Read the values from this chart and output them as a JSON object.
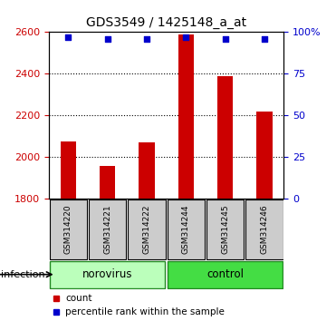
{
  "title": "GDS3549 / 1425148_a_at",
  "samples": [
    "GSM314220",
    "GSM314221",
    "GSM314222",
    "GSM314244",
    "GSM314245",
    "GSM314246"
  ],
  "counts": [
    2075,
    1960,
    2070,
    2590,
    2390,
    2220
  ],
  "percentile_ranks": [
    97,
    96,
    96,
    97,
    96,
    96
  ],
  "ylim_left": [
    1800,
    2600
  ],
  "ylim_right": [
    0,
    100
  ],
  "yticks_left": [
    1800,
    2000,
    2200,
    2400,
    2600
  ],
  "yticks_right": [
    0,
    25,
    50,
    75,
    100
  ],
  "groups": [
    {
      "label": "norovirus",
      "color": "#bbffbb"
    },
    {
      "label": "control",
      "color": "#44dd44"
    }
  ],
  "bar_color": "#cc0000",
  "dot_color": "#0000cc",
  "bar_width": 0.4,
  "group_label": "infection",
  "tick_area_color": "#cccccc",
  "left_tick_color": "#cc0000",
  "right_tick_color": "#0000cc",
  "norovirus_count": 3,
  "control_count": 3
}
